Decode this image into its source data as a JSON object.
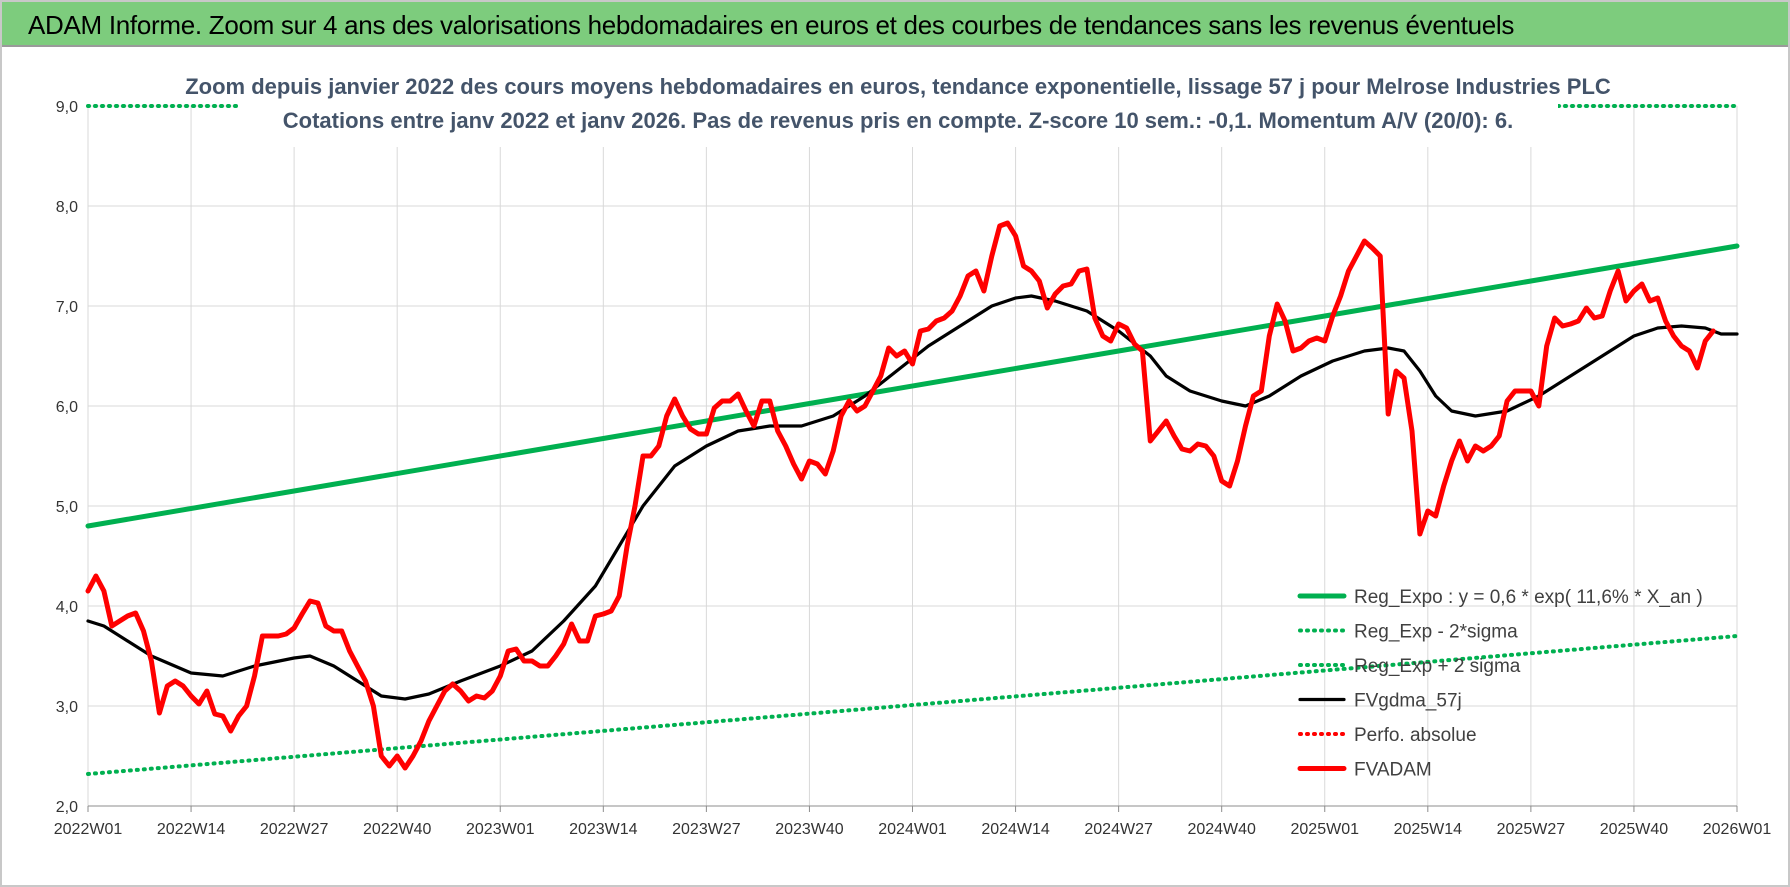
{
  "header": {
    "title": "ADAM Informe. Zoom sur 4 ans des valorisations hebdomadaires en euros et des courbes de tendances sans les revenus éventuels"
  },
  "colors": {
    "reg_expo": "#00b050",
    "fvgdma": "#000000",
    "fvadam": "#ff0000",
    "perfo": "#ff0000",
    "grid": "#d9d9d9"
  },
  "chart_data": {
    "type": "line",
    "title": "Zoom depuis janvier 2022 des cours moyens hebdomadaires en euros, tendance exponentielle, lissage 57 j pour Melrose Industries PLC",
    "subtitle": "Cotations entre janv 2022 et janv 2026. Pas de revenus pris en compte. Z-score 10 sem.: -0,1. Momentum A/V (20/0): 6.",
    "ylim": [
      2.0,
      9.0
    ],
    "y_ticks": [
      "2,0",
      "3,0",
      "4,0",
      "5,0",
      "6,0",
      "7,0",
      "8,0",
      "9,0"
    ],
    "x_ticks": [
      "2022W01",
      "2022W14",
      "2022W27",
      "2022W40",
      "2023W01",
      "2023W14",
      "2023W27",
      "2023W40",
      "2024W01",
      "2024W14",
      "2024W27",
      "2024W40",
      "2025W01",
      "2025W14",
      "2025W27",
      "2025W40",
      "2026W01"
    ],
    "x_tick_weeks": [
      0,
      13,
      26,
      39,
      52,
      65,
      78,
      91,
      104,
      117,
      130,
      143,
      156,
      169,
      182,
      195,
      208
    ],
    "grid": true,
    "legend_position": "bottom-right",
    "series": [
      {
        "name": "Reg_Expo : y = 0,6 * exp( 11,6% *  X_an )",
        "style": "solid-thick",
        "color": "#00b050",
        "points": [
          [
            0,
            4.8
          ],
          [
            208,
            7.6
          ]
        ]
      },
      {
        "name": "Reg_Exp - 2*sigma",
        "style": "dotted",
        "color": "#00b050",
        "points": [
          [
            0,
            2.32
          ],
          [
            208,
            3.7
          ]
        ]
      },
      {
        "name": "Reg_Exp + 2 sigma",
        "style": "dotted",
        "color": "#00b050",
        "points": [
          [
            0,
            9.0
          ],
          [
            208,
            9.0
          ]
        ]
      },
      {
        "name": "FVgdma_57j",
        "style": "solid",
        "color": "#000000",
        "points": [
          [
            0,
            3.85
          ],
          [
            2,
            3.8
          ],
          [
            5,
            3.65
          ],
          [
            8,
            3.5
          ],
          [
            13,
            3.33
          ],
          [
            17,
            3.3
          ],
          [
            21,
            3.4
          ],
          [
            26,
            3.48
          ],
          [
            28,
            3.5
          ],
          [
            31,
            3.4
          ],
          [
            35,
            3.2
          ],
          [
            37,
            3.1
          ],
          [
            40,
            3.07
          ],
          [
            43,
            3.12
          ],
          [
            47,
            3.25
          ],
          [
            52,
            3.4
          ],
          [
            56,
            3.55
          ],
          [
            60,
            3.85
          ],
          [
            64,
            4.2
          ],
          [
            67,
            4.6
          ],
          [
            70,
            5.0
          ],
          [
            74,
            5.4
          ],
          [
            78,
            5.6
          ],
          [
            82,
            5.75
          ],
          [
            86,
            5.8
          ],
          [
            90,
            5.8
          ],
          [
            94,
            5.9
          ],
          [
            98,
            6.1
          ],
          [
            102,
            6.35
          ],
          [
            106,
            6.6
          ],
          [
            110,
            6.8
          ],
          [
            114,
            7.0
          ],
          [
            117,
            7.08
          ],
          [
            119,
            7.1
          ],
          [
            122,
            7.05
          ],
          [
            126,
            6.95
          ],
          [
            130,
            6.75
          ],
          [
            134,
            6.5
          ],
          [
            136,
            6.3
          ],
          [
            139,
            6.15
          ],
          [
            143,
            6.05
          ],
          [
            146,
            6.0
          ],
          [
            149,
            6.1
          ],
          [
            153,
            6.3
          ],
          [
            157,
            6.45
          ],
          [
            161,
            6.55
          ],
          [
            164,
            6.58
          ],
          [
            166,
            6.55
          ],
          [
            168,
            6.35
          ],
          [
            170,
            6.1
          ],
          [
            172,
            5.95
          ],
          [
            175,
            5.9
          ],
          [
            179,
            5.95
          ],
          [
            183,
            6.1
          ],
          [
            187,
            6.3
          ],
          [
            191,
            6.5
          ],
          [
            195,
            6.7
          ],
          [
            198,
            6.78
          ],
          [
            201,
            6.8
          ],
          [
            204,
            6.78
          ],
          [
            206,
            6.72
          ],
          [
            208,
            6.72
          ]
        ]
      },
      {
        "name": "Perfo. absolue",
        "style": "dotted",
        "color": "#ff0000",
        "points": []
      },
      {
        "name": "FVADAM",
        "style": "solid-thick",
        "color": "#ff0000",
        "points": [
          [
            0,
            4.15
          ],
          [
            1,
            4.3
          ],
          [
            2,
            4.15
          ],
          [
            3,
            3.8
          ],
          [
            4,
            3.85
          ],
          [
            5,
            3.9
          ],
          [
            6,
            3.93
          ],
          [
            7,
            3.75
          ],
          [
            8,
            3.45
          ],
          [
            9,
            2.93
          ],
          [
            10,
            3.2
          ],
          [
            11,
            3.25
          ],
          [
            12,
            3.2
          ],
          [
            13,
            3.1
          ],
          [
            14,
            3.02
          ],
          [
            15,
            3.15
          ],
          [
            16,
            2.92
          ],
          [
            17,
            2.9
          ],
          [
            18,
            2.75
          ],
          [
            19,
            2.9
          ],
          [
            20,
            3.0
          ],
          [
            21,
            3.3
          ],
          [
            22,
            3.7
          ],
          [
            23,
            3.7
          ],
          [
            24,
            3.7
          ],
          [
            25,
            3.72
          ],
          [
            26,
            3.78
          ],
          [
            27,
            3.92
          ],
          [
            28,
            4.05
          ],
          [
            29,
            4.03
          ],
          [
            30,
            3.8
          ],
          [
            31,
            3.75
          ],
          [
            32,
            3.75
          ],
          [
            33,
            3.55
          ],
          [
            34,
            3.4
          ],
          [
            35,
            3.25
          ],
          [
            36,
            3.0
          ],
          [
            37,
            2.5
          ],
          [
            38,
            2.4
          ],
          [
            39,
            2.5
          ],
          [
            40,
            2.38
          ],
          [
            41,
            2.5
          ],
          [
            42,
            2.65
          ],
          [
            43,
            2.85
          ],
          [
            44,
            3.0
          ],
          [
            45,
            3.15
          ],
          [
            46,
            3.22
          ],
          [
            47,
            3.15
          ],
          [
            48,
            3.05
          ],
          [
            49,
            3.1
          ],
          [
            50,
            3.08
          ],
          [
            51,
            3.15
          ],
          [
            52,
            3.3
          ],
          [
            53,
            3.55
          ],
          [
            54,
            3.57
          ],
          [
            55,
            3.45
          ],
          [
            56,
            3.45
          ],
          [
            57,
            3.4
          ],
          [
            58,
            3.4
          ],
          [
            59,
            3.5
          ],
          [
            60,
            3.62
          ],
          [
            61,
            3.82
          ],
          [
            62,
            3.65
          ],
          [
            63,
            3.65
          ],
          [
            64,
            3.9
          ],
          [
            65,
            3.92
          ],
          [
            66,
            3.95
          ],
          [
            67,
            4.1
          ],
          [
            68,
            4.6
          ],
          [
            69,
            5.0
          ],
          [
            70,
            5.5
          ],
          [
            71,
            5.5
          ],
          [
            72,
            5.6
          ],
          [
            73,
            5.9
          ],
          [
            74,
            6.07
          ],
          [
            75,
            5.9
          ],
          [
            76,
            5.77
          ],
          [
            77,
            5.72
          ],
          [
            78,
            5.72
          ],
          [
            79,
            5.98
          ],
          [
            80,
            6.05
          ],
          [
            81,
            6.05
          ],
          [
            82,
            6.12
          ],
          [
            83,
            5.95
          ],
          [
            84,
            5.8
          ],
          [
            85,
            6.05
          ],
          [
            86,
            6.05
          ],
          [
            87,
            5.75
          ],
          [
            88,
            5.6
          ],
          [
            89,
            5.42
          ],
          [
            90,
            5.27
          ],
          [
            91,
            5.45
          ],
          [
            92,
            5.42
          ],
          [
            93,
            5.32
          ],
          [
            94,
            5.55
          ],
          [
            95,
            5.9
          ],
          [
            96,
            6.05
          ],
          [
            97,
            5.95
          ],
          [
            98,
            6.0
          ],
          [
            99,
            6.15
          ],
          [
            100,
            6.3
          ],
          [
            101,
            6.58
          ],
          [
            102,
            6.5
          ],
          [
            103,
            6.55
          ],
          [
            104,
            6.42
          ],
          [
            105,
            6.75
          ],
          [
            106,
            6.77
          ],
          [
            107,
            6.85
          ],
          [
            108,
            6.88
          ],
          [
            109,
            6.95
          ],
          [
            110,
            7.1
          ],
          [
            111,
            7.3
          ],
          [
            112,
            7.35
          ],
          [
            113,
            7.15
          ],
          [
            114,
            7.5
          ],
          [
            115,
            7.8
          ],
          [
            116,
            7.83
          ],
          [
            117,
            7.7
          ],
          [
            118,
            7.4
          ],
          [
            119,
            7.35
          ],
          [
            120,
            7.25
          ],
          [
            121,
            6.98
          ],
          [
            122,
            7.12
          ],
          [
            123,
            7.2
          ],
          [
            124,
            7.22
          ],
          [
            125,
            7.35
          ],
          [
            126,
            7.37
          ],
          [
            127,
            6.88
          ],
          [
            128,
            6.7
          ],
          [
            129,
            6.65
          ],
          [
            130,
            6.82
          ],
          [
            131,
            6.78
          ],
          [
            132,
            6.62
          ],
          [
            133,
            6.55
          ],
          [
            134,
            5.65
          ],
          [
            135,
            5.75
          ],
          [
            136,
            5.85
          ],
          [
            137,
            5.7
          ],
          [
            138,
            5.57
          ],
          [
            139,
            5.55
          ],
          [
            140,
            5.62
          ],
          [
            141,
            5.6
          ],
          [
            142,
            5.5
          ],
          [
            143,
            5.25
          ],
          [
            144,
            5.2
          ],
          [
            145,
            5.45
          ],
          [
            146,
            5.8
          ],
          [
            147,
            6.1
          ],
          [
            148,
            6.15
          ],
          [
            149,
            6.7
          ],
          [
            150,
            7.02
          ],
          [
            151,
            6.85
          ],
          [
            152,
            6.55
          ],
          [
            153,
            6.58
          ],
          [
            154,
            6.65
          ],
          [
            155,
            6.68
          ],
          [
            156,
            6.65
          ],
          [
            157,
            6.9
          ],
          [
            158,
            7.1
          ],
          [
            159,
            7.35
          ],
          [
            160,
            7.5
          ],
          [
            161,
            7.65
          ],
          [
            162,
            7.58
          ],
          [
            163,
            7.5
          ],
          [
            164,
            5.92
          ],
          [
            165,
            6.35
          ],
          [
            166,
            6.28
          ],
          [
            167,
            5.75
          ],
          [
            168,
            4.72
          ],
          [
            169,
            4.95
          ],
          [
            170,
            4.9
          ],
          [
            171,
            5.2
          ],
          [
            172,
            5.45
          ],
          [
            173,
            5.65
          ],
          [
            174,
            5.45
          ],
          [
            175,
            5.6
          ],
          [
            176,
            5.55
          ],
          [
            177,
            5.6
          ],
          [
            178,
            5.7
          ],
          [
            179,
            6.05
          ],
          [
            180,
            6.15
          ],
          [
            181,
            6.15
          ],
          [
            182,
            6.15
          ],
          [
            183,
            6.0
          ],
          [
            184,
            6.6
          ],
          [
            185,
            6.88
          ],
          [
            186,
            6.8
          ],
          [
            187,
            6.82
          ],
          [
            188,
            6.85
          ],
          [
            189,
            6.98
          ],
          [
            190,
            6.88
          ],
          [
            191,
            6.9
          ],
          [
            192,
            7.15
          ],
          [
            193,
            7.35
          ],
          [
            194,
            7.05
          ],
          [
            195,
            7.15
          ],
          [
            196,
            7.22
          ],
          [
            197,
            7.05
          ],
          [
            198,
            7.08
          ],
          [
            199,
            6.85
          ],
          [
            200,
            6.7
          ],
          [
            201,
            6.6
          ],
          [
            202,
            6.55
          ],
          [
            203,
            6.38
          ],
          [
            204,
            6.65
          ],
          [
            205,
            6.75
          ]
        ]
      }
    ]
  }
}
